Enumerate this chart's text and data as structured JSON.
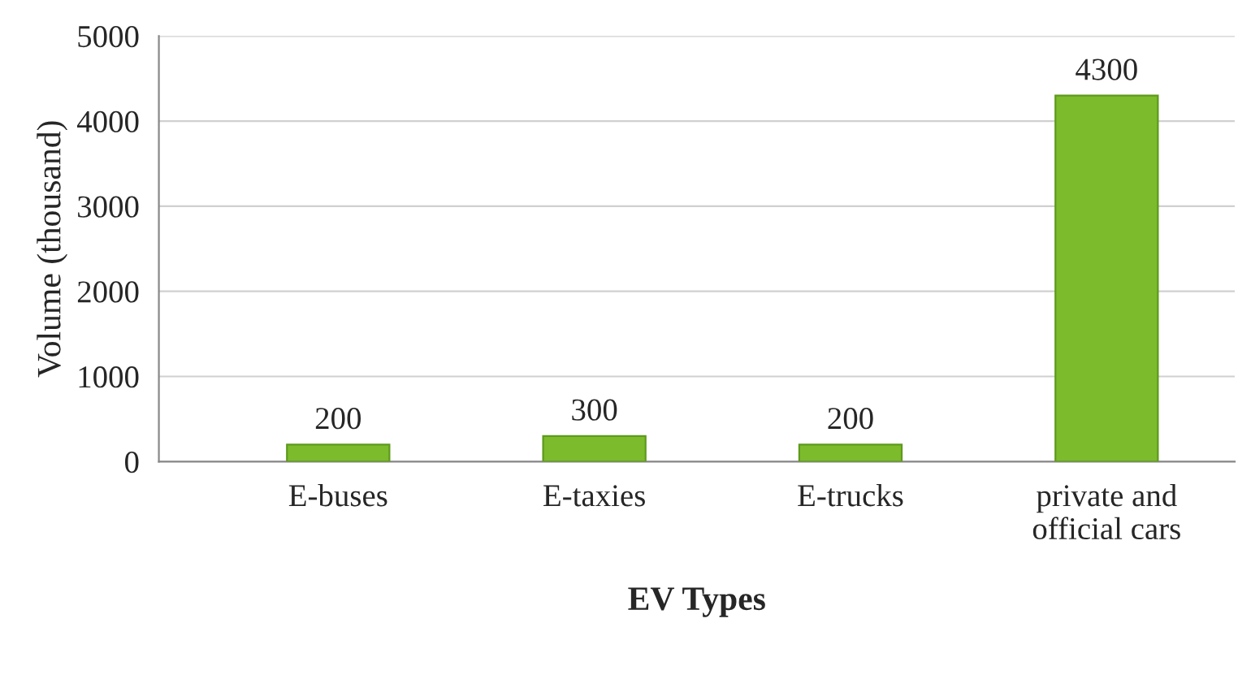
{
  "chart_data": {
    "type": "bar",
    "xlabel": "EV Types",
    "ylabel": "Volume (thousand)",
    "categories": [
      "E-buses",
      "E-taxies",
      "E-trucks",
      "private and\nofficial cars"
    ],
    "values": [
      200,
      300,
      200,
      4300
    ],
    "color": "#7cbb2c",
    "ylim": [
      0,
      5000
    ],
    "yticks": [
      0,
      1000,
      2000,
      3000,
      4000,
      5000
    ],
    "grid": "y",
    "data_labels": true
  }
}
